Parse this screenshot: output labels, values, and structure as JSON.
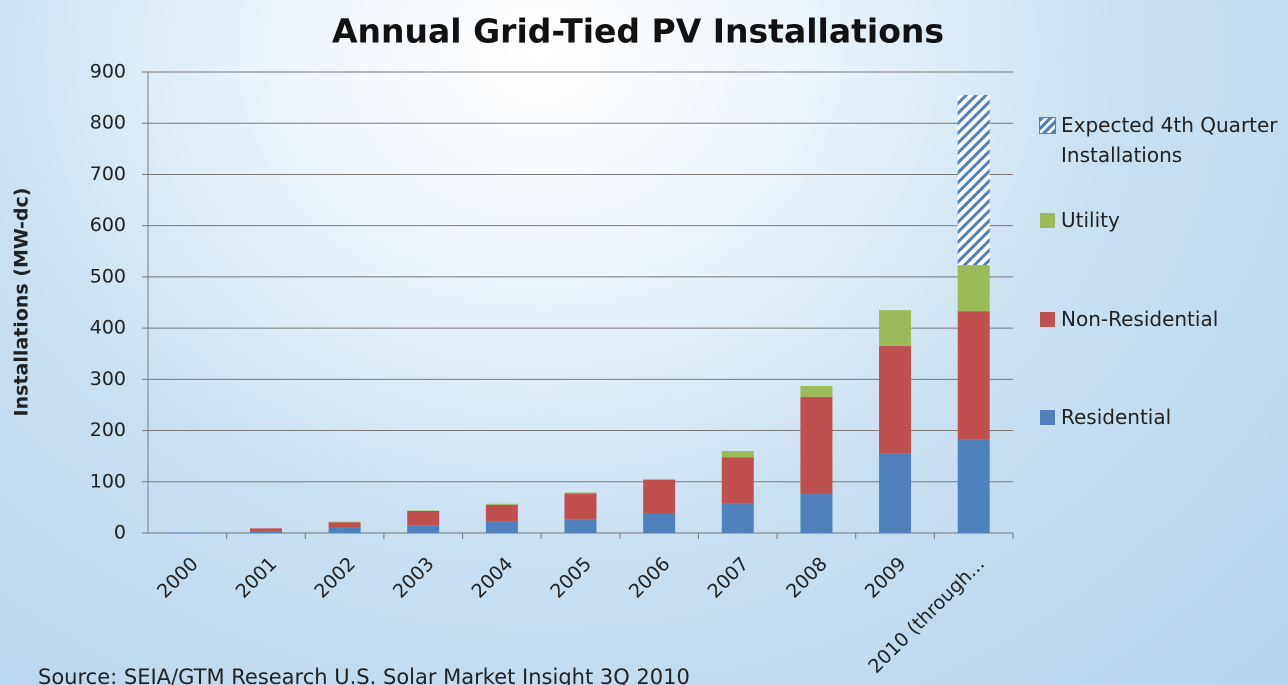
{
  "chart_data": {
    "type": "stacked_bar",
    "title": "Annual Grid-Tied PV Installations",
    "y_label": "Installations (MW-dc)",
    "source": "Source: SEIA/GTM Research U.S. Solar Market Insight 3Q 2010",
    "categories": [
      "2000",
      "2001",
      "2002",
      "2003",
      "2004",
      "2005",
      "2006",
      "2007",
      "2008",
      "2009",
      "2010 (through..."
    ],
    "series": [
      {
        "name": "Residential",
        "color": "#4f81bd",
        "values": [
          1,
          4,
          10,
          15,
          22,
          27,
          38,
          57,
          76,
          156,
          182
        ]
      },
      {
        "name": "Non-Residential",
        "color": "#c0504d",
        "values": [
          0,
          5,
          11,
          28,
          33,
          50,
          66,
          91,
          190,
          209,
          251
        ]
      },
      {
        "name": "Utility",
        "color": "#9bbb59",
        "values": [
          0,
          0,
          1,
          1,
          2,
          2,
          1,
          12,
          21,
          70,
          90
        ]
      },
      {
        "name": "Expected 4th Quarter Installations",
        "color": "#4f81bd",
        "hatched": true,
        "values": [
          0,
          0,
          0,
          0,
          0,
          0,
          0,
          0,
          0,
          0,
          332
        ]
      }
    ],
    "ylim": [
      0,
      900
    ],
    "yticks": [
      0,
      100,
      200,
      300,
      400,
      500,
      600,
      700,
      800,
      900
    ],
    "grid": true,
    "legend": "right"
  }
}
